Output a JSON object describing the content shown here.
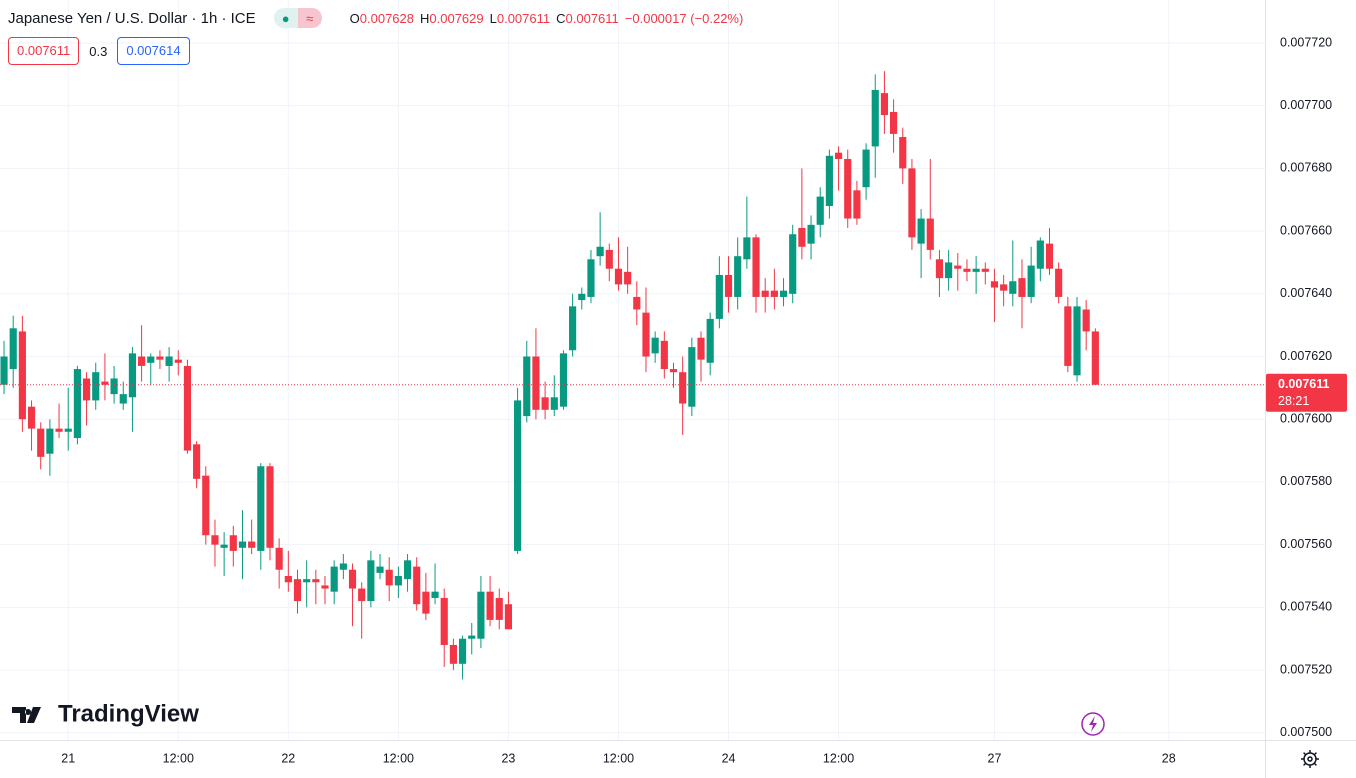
{
  "header": {
    "symbol": "Japanese Yen / U.S. Dollar · 1h · ICE",
    "ohlc": [
      {
        "key": "O",
        "value": 0.007628
      },
      {
        "key": "H",
        "value": 0.007629
      },
      {
        "key": "L",
        "value": 0.007611
      },
      {
        "key": "C",
        "value": 0.007611
      }
    ],
    "change": "−0.000017 (−0.22%)",
    "bid": 0.007611,
    "spread": 0.3,
    "ask": 0.007614
  },
  "chart_data": {
    "type": "candlestick",
    "up_color": "#089981",
    "down_color": "#f23645",
    "grid": true,
    "open": [
      0.007611,
      0.007616,
      0.007628,
      0.007604,
      0.007597,
      0.007589,
      0.007597,
      0.007596,
      0.007594,
      0.007613,
      0.007606,
      0.007612,
      0.007608,
      0.007605,
      0.007607,
      0.00762,
      0.007618,
      0.00762,
      0.007617,
      0.007619,
      0.007617,
      0.007592,
      0.007582,
      0.007563,
      0.007559,
      0.007563,
      0.007559,
      0.007561,
      0.007558,
      0.007585,
      0.007559,
      0.00755,
      0.007549,
      0.007548,
      0.007549,
      0.007547,
      0.007545,
      0.007552,
      0.007552,
      0.007546,
      0.007542,
      0.007551,
      0.007552,
      0.007547,
      0.007549,
      0.007553,
      0.007545,
      0.007543,
      0.007543,
      0.007528,
      0.007522,
      0.00753,
      0.00753,
      0.007545,
      0.007543,
      0.007541,
      0.007558,
      0.007601,
      0.00762,
      0.007607,
      0.007603,
      0.007604,
      0.007622,
      0.007638,
      0.007639,
      0.007652,
      0.007654,
      0.007648,
      0.007647,
      0.007639,
      0.007634,
      0.007621,
      0.007625,
      0.007616,
      0.007615,
      0.007604,
      0.007626,
      0.007618,
      0.007632,
      0.007646,
      0.007639,
      0.007651,
      0.007658,
      0.007641,
      0.007641,
      0.007639,
      0.00764,
      0.007661,
      0.007656,
      0.007662,
      0.007668,
      0.007685,
      0.007683,
      0.007673,
      0.007674,
      0.007687,
      0.007704,
      0.007698,
      0.00769,
      0.00768,
      0.007656,
      0.007664,
      0.007651,
      0.007645,
      0.007649,
      0.007648,
      0.007647,
      0.007648,
      0.007644,
      0.007643,
      0.00764,
      0.007645,
      0.007639,
      0.007648,
      0.007656,
      0.007648,
      0.007636,
      0.007614,
      0.007635,
      0.007628
    ],
    "high": [
      0.007625,
      0.007633,
      0.007633,
      0.007606,
      0.007599,
      0.0076,
      0.007605,
      0.00761,
      0.007617,
      0.007615,
      0.007618,
      0.007621,
      0.007617,
      0.007612,
      0.007623,
      0.00763,
      0.007621,
      0.007622,
      0.007623,
      0.007622,
      0.007619,
      0.007593,
      0.007585,
      0.007568,
      0.007564,
      0.007566,
      0.007571,
      0.007568,
      0.007586,
      0.007586,
      0.007562,
      0.007558,
      0.007552,
      0.007555,
      0.007552,
      0.00755,
      0.007555,
      0.007557,
      0.007554,
      0.007548,
      0.007558,
      0.007557,
      0.007556,
      0.007553,
      0.007557,
      0.007556,
      0.007551,
      0.007554,
      0.007546,
      0.00753,
      0.007531,
      0.007535,
      0.00755,
      0.00755,
      0.007546,
      0.007545,
      0.00761,
      0.007625,
      0.007629,
      0.007612,
      0.007614,
      0.007622,
      0.00764,
      0.007642,
      0.007654,
      0.007666,
      0.007656,
      0.007658,
      0.007655,
      0.007644,
      0.007642,
      0.007628,
      0.007628,
      0.007618,
      0.00762,
      0.007626,
      0.007628,
      0.007634,
      0.007652,
      0.007652,
      0.007658,
      0.007671,
      0.007659,
      0.007645,
      0.007648,
      0.007645,
      0.007662,
      0.00768,
      0.007665,
      0.007674,
      0.007686,
      0.007687,
      0.007686,
      0.007676,
      0.007688,
      0.00771,
      0.007711,
      0.007702,
      0.007693,
      0.007683,
      0.007667,
      0.007683,
      0.007654,
      0.007654,
      0.007653,
      0.007651,
      0.007652,
      0.00765,
      0.007648,
      0.007646,
      0.007657,
      0.007651,
      0.007655,
      0.007658,
      0.007661,
      0.00765,
      0.007639,
      0.007639,
      0.007638,
      0.007629
    ],
    "low": [
      0.007608,
      0.00761,
      0.007596,
      0.00759,
      0.007584,
      0.007582,
      0.007594,
      0.00759,
      0.007592,
      0.007598,
      0.007603,
      0.007606,
      0.007605,
      0.007603,
      0.007596,
      0.007612,
      0.007611,
      0.007616,
      0.007612,
      0.007614,
      0.007589,
      0.007578,
      0.00756,
      0.007553,
      0.00755,
      0.007553,
      0.007549,
      0.007557,
      0.007552,
      0.007555,
      0.007546,
      0.007545,
      0.007538,
      0.00754,
      0.007541,
      0.007541,
      0.007541,
      0.007549,
      0.007534,
      0.00753,
      0.00754,
      0.007549,
      0.007542,
      0.007543,
      0.007545,
      0.007539,
      0.007536,
      0.007541,
      0.007521,
      0.00752,
      0.007517,
      0.007525,
      0.007527,
      0.007534,
      0.007533,
      0.007533,
      0.007557,
      0.007599,
      0.0076,
      0.0076,
      0.007601,
      0.007603,
      0.00762,
      0.007635,
      0.007637,
      0.007649,
      0.007644,
      0.007641,
      0.00764,
      0.00763,
      0.007615,
      0.007618,
      0.007613,
      0.00761,
      0.007595,
      0.007601,
      0.007612,
      0.007614,
      0.007629,
      0.007634,
      0.007635,
      0.007648,
      0.007634,
      0.007634,
      0.007635,
      0.007636,
      0.007637,
      0.007651,
      0.007651,
      0.007658,
      0.007664,
      0.007673,
      0.007661,
      0.007662,
      0.00767,
      0.007677,
      0.007691,
      0.007685,
      0.007675,
      0.007654,
      0.007645,
      0.007651,
      0.007639,
      0.007641,
      0.007641,
      0.007644,
      0.00764,
      0.007643,
      0.007631,
      0.007636,
      0.007636,
      0.007629,
      0.007637,
      0.007644,
      0.007646,
      0.007637,
      0.007615,
      0.007612,
      0.007622,
      0.007611
    ],
    "close": [
      0.00762,
      0.007629,
      0.0076,
      0.007597,
      0.007588,
      0.007597,
      0.007596,
      0.007597,
      0.007616,
      0.007606,
      0.007615,
      0.007611,
      0.007613,
      0.007608,
      0.007621,
      0.007617,
      0.00762,
      0.007619,
      0.00762,
      0.007618,
      0.00759,
      0.007581,
      0.007563,
      0.00756,
      0.00756,
      0.007558,
      0.007561,
      0.007559,
      0.007585,
      0.007559,
      0.007552,
      0.007548,
      0.007542,
      0.007549,
      0.007548,
      0.007546,
      0.007553,
      0.007554,
      0.007546,
      0.007542,
      0.007555,
      0.007553,
      0.007547,
      0.00755,
      0.007555,
      0.007541,
      0.007538,
      0.007545,
      0.007528,
      0.007522,
      0.00753,
      0.007531,
      0.007545,
      0.007536,
      0.007536,
      0.007533,
      0.007606,
      0.00762,
      0.007603,
      0.007603,
      0.007607,
      0.007621,
      0.007636,
      0.00764,
      0.007651,
      0.007655,
      0.007648,
      0.007643,
      0.007643,
      0.007635,
      0.00762,
      0.007626,
      0.007616,
      0.007615,
      0.007605,
      0.007623,
      0.007619,
      0.007632,
      0.007646,
      0.007639,
      0.007652,
      0.007658,
      0.007639,
      0.007639,
      0.007639,
      0.007641,
      0.007659,
      0.007655,
      0.007662,
      0.007671,
      0.007684,
      0.007683,
      0.007664,
      0.007664,
      0.007686,
      0.007705,
      0.007697,
      0.007691,
      0.00768,
      0.007658,
      0.007664,
      0.007654,
      0.007645,
      0.00765,
      0.007648,
      0.007647,
      0.007648,
      0.007647,
      0.007642,
      0.007641,
      0.007644,
      0.007639,
      0.007649,
      0.007657,
      0.007648,
      0.007639,
      0.007617,
      0.007636,
      0.007628,
      0.007611
    ],
    "xlim": [
      -0.44,
      137.5
    ],
    "xticks": [
      {
        "value": 7,
        "label": "21"
      },
      {
        "value": 19,
        "label": "12:00"
      },
      {
        "value": 31,
        "label": "22"
      },
      {
        "value": 43,
        "label": "12:00"
      },
      {
        "value": 55,
        "label": "23"
      },
      {
        "value": 67,
        "label": "12:00"
      },
      {
        "value": 79,
        "label": "24"
      },
      {
        "value": 91,
        "label": "12:00"
      },
      {
        "value": 108,
        "label": "27"
      },
      {
        "value": 127,
        "label": "28"
      }
    ],
    "ylim": [
      0.0074977,
      0.0077337
    ],
    "yticks": [
      {
        "value": 0.0075,
        "label": "0.007500"
      },
      {
        "value": 0.00752,
        "label": "0.007520"
      },
      {
        "value": 0.00754,
        "label": "0.007540"
      },
      {
        "value": 0.00756,
        "label": "0.007560"
      },
      {
        "value": 0.00758,
        "label": "0.007580"
      },
      {
        "value": 0.0076,
        "label": "0.007600"
      },
      {
        "value": 0.00762,
        "label": "0.007620"
      },
      {
        "value": 0.00764,
        "label": "0.007640"
      },
      {
        "value": 0.00766,
        "label": "0.007660"
      },
      {
        "value": 0.00768,
        "label": "0.007680"
      },
      {
        "value": 0.0077,
        "label": "0.007700"
      },
      {
        "value": 0.00772,
        "label": "0.007720"
      }
    ],
    "last_price": {
      "value": 0.007611,
      "label": "0.007611",
      "countdown": "28:21"
    },
    "watermark": "TradingView"
  }
}
